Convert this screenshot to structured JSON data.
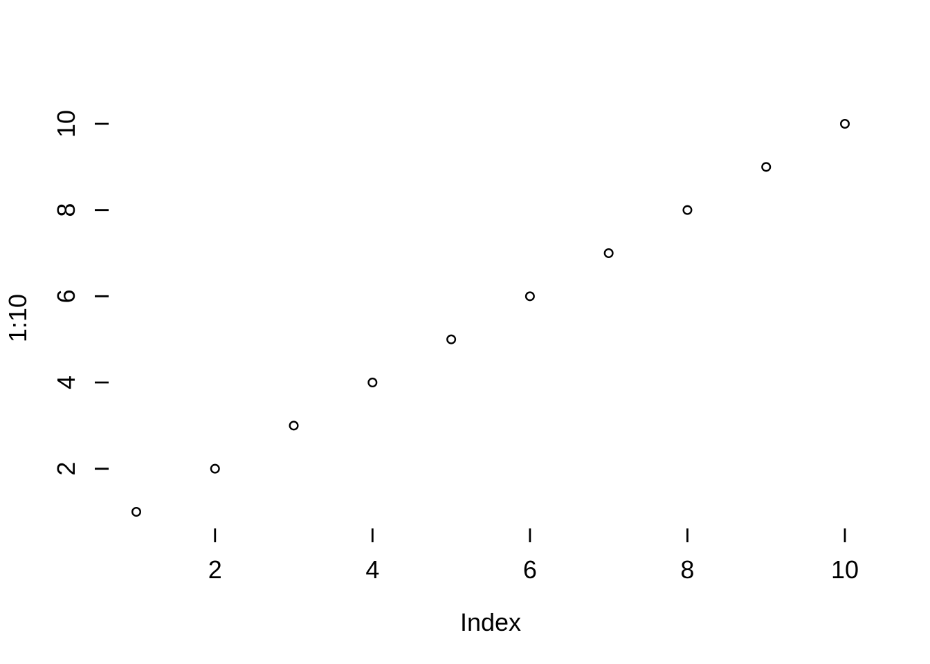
{
  "figure": {
    "background": "#ffffff",
    "foreground": "#000000"
  },
  "chart_data": {
    "type": "scatter",
    "title": "",
    "xlabel": "Index",
    "ylabel": "1:10",
    "x": [
      1,
      2,
      3,
      4,
      5,
      6,
      7,
      8,
      9,
      10
    ],
    "y": [
      1,
      2,
      3,
      4,
      5,
      6,
      7,
      8,
      9,
      10
    ],
    "x_ticks": [
      2,
      4,
      6,
      8,
      10
    ],
    "y_ticks": [
      2,
      4,
      6,
      8,
      10
    ],
    "x_tick_labels": [
      "2",
      "4",
      "6",
      "8",
      "10"
    ],
    "y_tick_labels": [
      "2",
      "4",
      "6",
      "8",
      "10"
    ],
    "xlim": [
      1,
      10
    ],
    "ylim": [
      1,
      10
    ],
    "grid": false,
    "box": false,
    "axis_lines": false,
    "legend_position": "none",
    "marker": "open-circle",
    "marker_color": "#000000",
    "background": "#ffffff"
  }
}
